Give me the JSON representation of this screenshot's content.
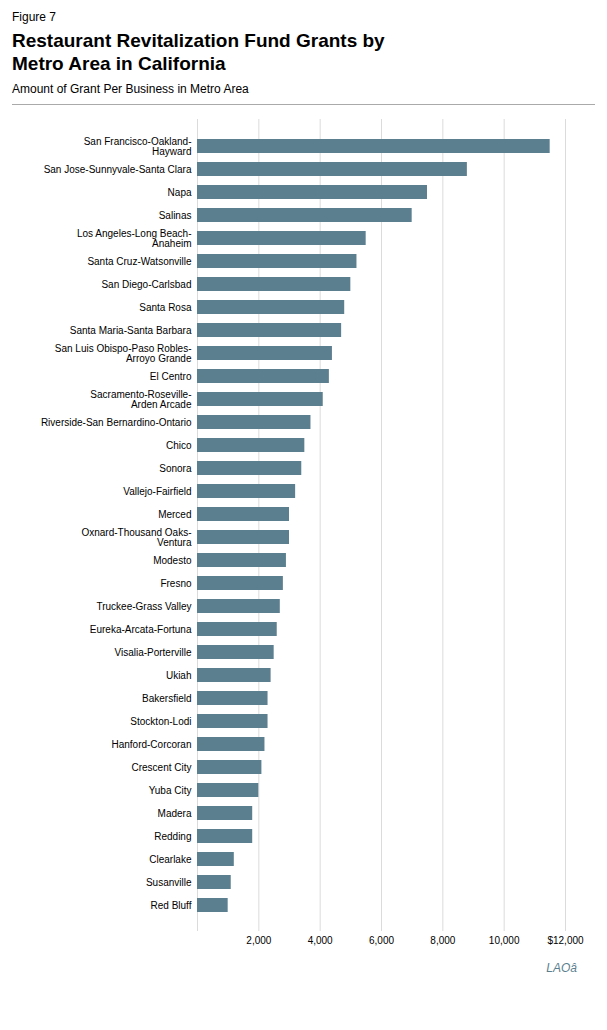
{
  "chart_data": {
    "type": "bar",
    "orientation": "horizontal",
    "title": "Restaurant Revitalization Fund Grants by\nMetro Area in California",
    "subtitle": "Amount of Grant Per Business in Metro Area",
    "annotations": [
      {
        "text": "Figure 7"
      },
      {
        "text": "LAOâ",
        "color": "#5b7f8f"
      }
    ],
    "categories": [
      "San Francisco-Oakland-\nHayward",
      "San Jose-Sunnyvale-Santa Clara",
      "Napa",
      "Salinas",
      "Los Angeles-Long Beach-\nAnaheim",
      "Santa Cruz-Watsonville",
      "San Diego-Carlsbad",
      "Santa Rosa",
      "Santa Maria-Santa Barbara",
      "San Luis Obispo-Paso Robles-\nArroyo Grande",
      "El Centro",
      "Sacramento-Roseville-\nArden Arcade",
      "Riverside-San Bernardino-Ontario",
      "Chico",
      "Sonora",
      "Vallejo-Fairfield",
      "Merced",
      "Oxnard-Thousand Oaks-\nVentura",
      "Modesto",
      "Fresno",
      "Truckee-Grass Valley",
      "Eureka-Arcata-Fortuna",
      "Visalia-Porterville",
      "Ukiah",
      "Bakersfield",
      "Stockton-Lodi",
      "Hanford-Corcoran",
      "Crescent City",
      "Yuba City",
      "Madera",
      "Redding",
      "Clearlake",
      "Susanville",
      "Red Bluff"
    ],
    "values": [
      11500,
      8800,
      7500,
      7000,
      5500,
      5200,
      5000,
      4800,
      4700,
      4400,
      4300,
      4100,
      3700,
      3500,
      3400,
      3200,
      3000,
      3000,
      2900,
      2800,
      2700,
      2600,
      2500,
      2400,
      2300,
      2300,
      2200,
      2100,
      2000,
      1800,
      1800,
      1200,
      1100,
      1000
    ],
    "color": "#5b7f8f",
    "xlim": [
      0,
      12000
    ],
    "xticks": [
      {
        "value": 0,
        "label": ""
      },
      {
        "value": 2000,
        "label": "2,000"
      },
      {
        "value": 4000,
        "label": "4,000"
      },
      {
        "value": 6000,
        "label": "6,000"
      },
      {
        "value": 8000,
        "label": "8,000"
      },
      {
        "value": 10000,
        "label": "10,000"
      },
      {
        "value": 12000,
        "label": "$12,000"
      }
    ],
    "grid": true
  }
}
